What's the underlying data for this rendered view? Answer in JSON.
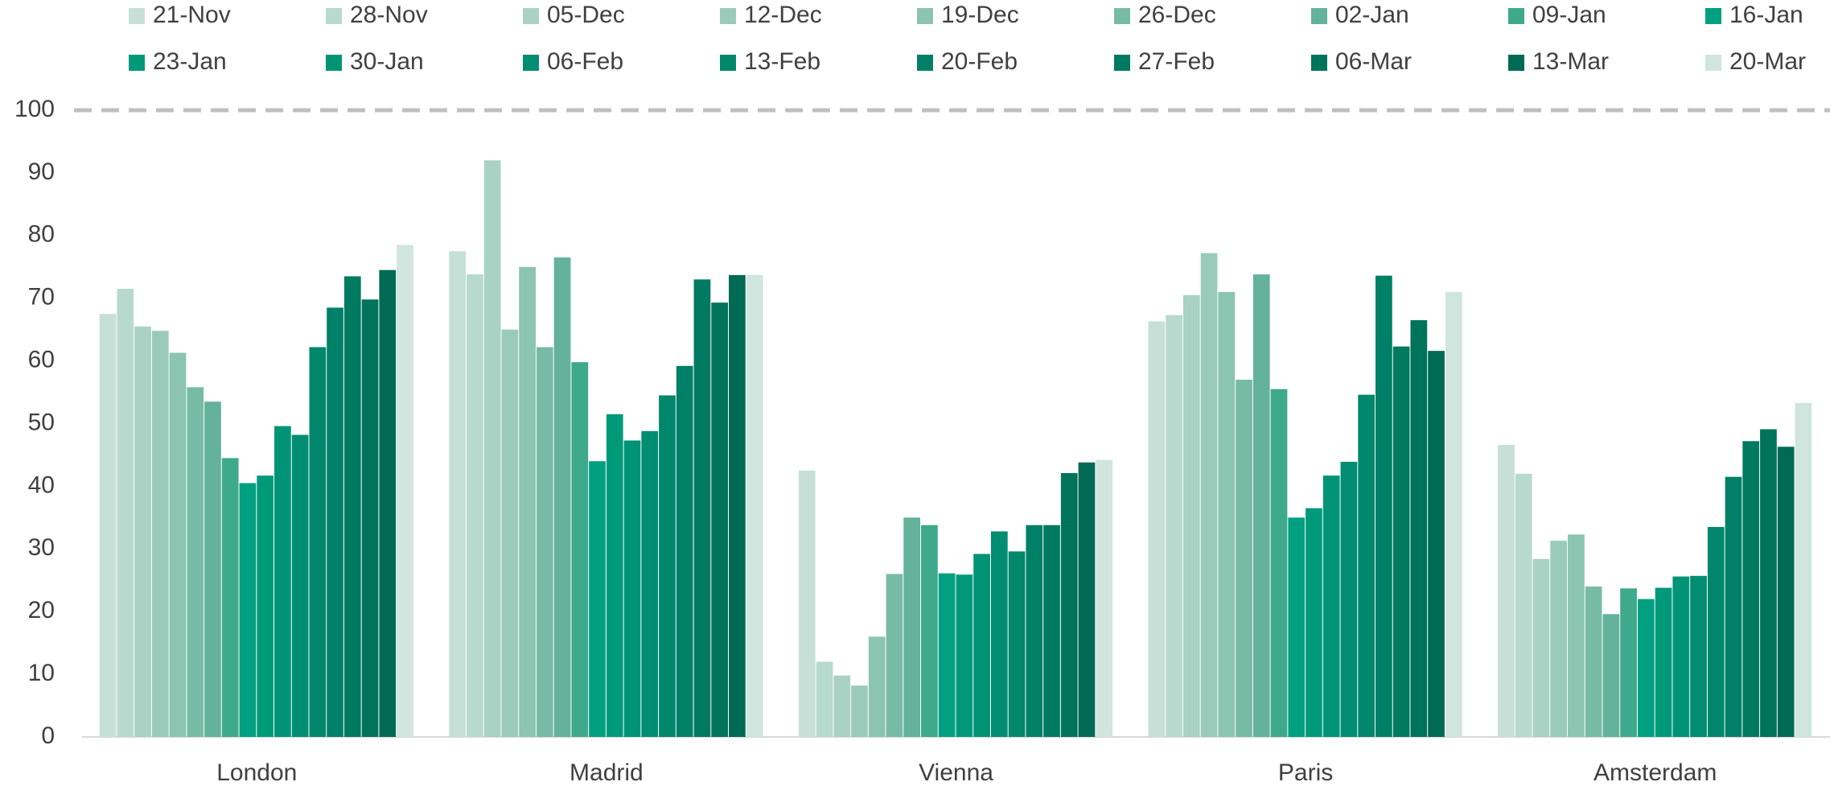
{
  "chart_data": {
    "type": "bar",
    "categories": [
      "London",
      "Madrid",
      "Vienna",
      "Paris",
      "Amsterdam"
    ],
    "series": [
      {
        "name": "21-Nov",
        "color": "#c6e0d7",
        "values": [
          67.5,
          77.5,
          42.5,
          66.3,
          46.6
        ]
      },
      {
        "name": "28-Nov",
        "color": "#b8d9ce",
        "values": [
          71.5,
          73.8,
          12,
          67.3,
          42
        ]
      },
      {
        "name": "05-Dec",
        "color": "#a9d2c4",
        "values": [
          65.5,
          92,
          9.8,
          70.5,
          28.4
        ]
      },
      {
        "name": "12-Dec",
        "color": "#9acbba",
        "values": [
          64.8,
          65,
          8.2,
          77.2,
          31.3
        ]
      },
      {
        "name": "19-Dec",
        "color": "#8bc4b0",
        "values": [
          61.3,
          75,
          16,
          71,
          32.3
        ]
      },
      {
        "name": "26-Dec",
        "color": "#78bba4",
        "values": [
          55.8,
          62.2,
          26,
          57,
          24
        ]
      },
      {
        "name": "02-Jan",
        "color": "#63b299",
        "values": [
          53.5,
          76.5,
          35,
          73.8,
          19.6
        ]
      },
      {
        "name": "09-Jan",
        "color": "#3fa98b",
        "values": [
          44.5,
          59.8,
          33.8,
          55.5,
          23.7
        ]
      },
      {
        "name": "16-Jan",
        "color": "#00a080",
        "values": [
          40.5,
          44,
          26.1,
          35,
          22
        ]
      },
      {
        "name": "23-Jan",
        "color": "#009a7b",
        "values": [
          41.7,
          51.5,
          25.9,
          36.5,
          23.8
        ]
      },
      {
        "name": "30-Jan",
        "color": "#009376",
        "values": [
          49.6,
          47.3,
          29.2,
          41.7,
          25.6
        ]
      },
      {
        "name": "06-Feb",
        "color": "#008d71",
        "values": [
          48.2,
          48.8,
          32.8,
          43.9,
          25.7
        ]
      },
      {
        "name": "13-Feb",
        "color": "#00876c",
        "values": [
          62.2,
          54.5,
          29.6,
          54.6,
          33.5
        ]
      },
      {
        "name": "20-Feb",
        "color": "#008066",
        "values": [
          68.5,
          59.2,
          33.8,
          73.6,
          41.5
        ]
      },
      {
        "name": "27-Feb",
        "color": "#007a61",
        "values": [
          73.5,
          73,
          33.8,
          62.3,
          47.2
        ]
      },
      {
        "name": "06-Mar",
        "color": "#00735b",
        "values": [
          69.8,
          69.3,
          42.1,
          66.5,
          49.1
        ]
      },
      {
        "name": "13-Mar",
        "color": "#006a54",
        "values": [
          74.5,
          73.7,
          43.8,
          61.6,
          46.3
        ]
      },
      {
        "name": "20-Mar",
        "color": "#cfe5de",
        "values": [
          78.5,
          73.7,
          44.2,
          71,
          53.3
        ]
      }
    ],
    "ylim": [
      0,
      100
    ],
    "yticks": [
      0,
      10,
      20,
      30,
      40,
      50,
      60,
      70,
      80,
      90,
      100
    ],
    "reference_line": 100,
    "legend": "top"
  }
}
